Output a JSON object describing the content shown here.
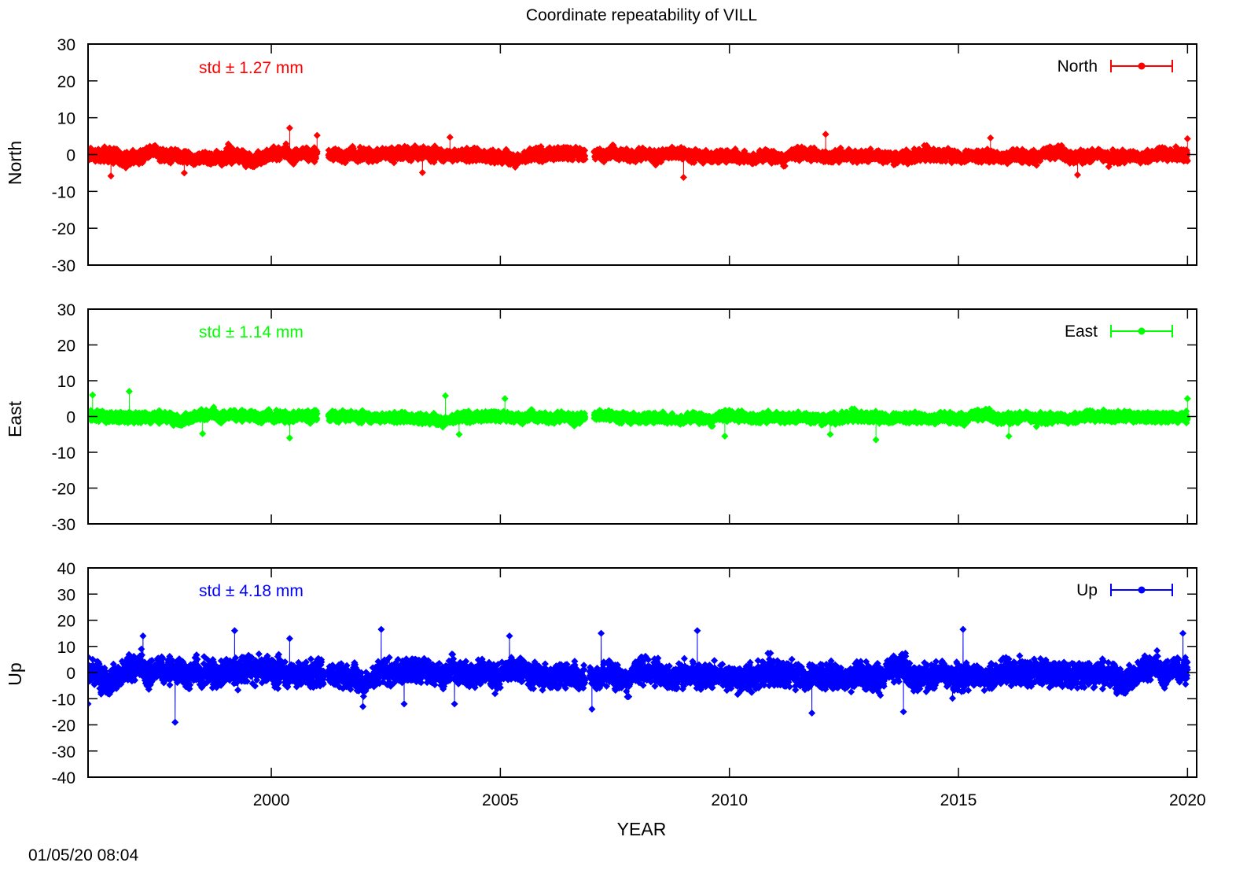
{
  "title": "Coordinate repeatability of VILL",
  "timestamp": "01/05/20 08:04",
  "colors": {
    "north": "#ff0000",
    "east": "#00ff00",
    "up": "#0000ff",
    "axis": "#000000"
  },
  "chart_data": [
    {
      "type": "scatter",
      "component": "North",
      "ylabel": "North",
      "legend": "North",
      "legend_position": "top-right",
      "std_label": "std ± 1.27 mm",
      "ylim": [
        -30,
        30
      ],
      "yticks": [
        30,
        20,
        10,
        0,
        -10,
        -20,
        -30
      ],
      "xlim": [
        1996.0,
        2020.2
      ],
      "grid": false,
      "series": [
        {
          "name": "North",
          "segments": [
            {
              "x0": 1996.0,
              "x1": 2001.0,
              "x_step": 0.0042,
              "center": -0.3,
              "spread": 1.6,
              "outliers": [
                [
                  1996.5,
                  -5.8
                ],
                [
                  2000.4,
                  7.2
                ],
                [
                  2001.0,
                  5.2
                ],
                [
                  1998.1,
                  -5.0
                ]
              ]
            },
            {
              "x0": 2001.25,
              "x1": 2006.85,
              "x_step": 0.0042,
              "center": 0.0,
              "spread": 1.5,
              "outliers": [
                [
                  2003.9,
                  4.7
                ],
                [
                  2003.3,
                  -4.9
                ]
              ]
            },
            {
              "x0": 2007.05,
              "x1": 2020.0,
              "x_step": 0.0042,
              "center": 0.0,
              "spread": 1.4,
              "outliers": [
                [
                  2009.0,
                  -6.2
                ],
                [
                  2012.1,
                  5.5
                ],
                [
                  2015.7,
                  4.5
                ],
                [
                  2017.6,
                  -5.5
                ],
                [
                  2020.0,
                  4.3
                ]
              ]
            }
          ]
        }
      ]
    },
    {
      "type": "scatter",
      "component": "East",
      "ylabel": "East",
      "legend": "East",
      "legend_position": "top-right",
      "std_label": "std ± 1.14 mm",
      "ylim": [
        -30,
        30
      ],
      "yticks": [
        30,
        20,
        10,
        0,
        -10,
        -20,
        -30
      ],
      "xlim": [
        1996.0,
        2020.2
      ],
      "grid": false,
      "series": [
        {
          "name": "East",
          "segments": [
            {
              "x0": 1996.0,
              "x1": 2001.0,
              "x_step": 0.0042,
              "center": 0.0,
              "spread": 1.3,
              "outliers": [
                [
                  1996.9,
                  7.0
                ],
                [
                  1996.1,
                  6.0
                ],
                [
                  2000.4,
                  -6.0
                ],
                [
                  1998.5,
                  -4.8
                ]
              ]
            },
            {
              "x0": 2001.25,
              "x1": 2006.85,
              "x_step": 0.0042,
              "center": -0.2,
              "spread": 1.2,
              "outliers": [
                [
                  2003.8,
                  5.8
                ],
                [
                  2004.1,
                  -5.0
                ],
                [
                  2005.1,
                  5.0
                ]
              ]
            },
            {
              "x0": 2007.05,
              "x1": 2020.0,
              "x_step": 0.0042,
              "center": 0.0,
              "spread": 1.2,
              "outliers": [
                [
                  2009.9,
                  -5.5
                ],
                [
                  2012.2,
                  -5.0
                ],
                [
                  2013.2,
                  -6.5
                ],
                [
                  2016.1,
                  -5.5
                ],
                [
                  2020.0,
                  5.0
                ]
              ]
            }
          ]
        }
      ]
    },
    {
      "type": "scatter",
      "component": "Up",
      "ylabel": "Up",
      "legend": "Up",
      "legend_position": "top-right",
      "std_label": "std ± 4.18 mm",
      "ylim": [
        -40,
        40
      ],
      "yticks": [
        40,
        30,
        20,
        10,
        0,
        -10,
        -20,
        -30,
        -40
      ],
      "xlim": [
        1996.0,
        2020.2
      ],
      "grid": false,
      "series": [
        {
          "name": "Up",
          "segments": [
            {
              "x0": 1996.0,
              "x1": 2001.15,
              "x_step": 0.0042,
              "center": 0.0,
              "spread": 4.5,
              "outliers": [
                [
                  1997.9,
                  -19.0
                ],
                [
                  1996.0,
                  -12.0
                ],
                [
                  1999.2,
                  16.0
                ],
                [
                  2000.4,
                  13.0
                ],
                [
                  1997.2,
                  14.0
                ]
              ]
            },
            {
              "x0": 2001.25,
              "x1": 2006.85,
              "x_step": 0.0042,
              "center": 0.0,
              "spread": 4.0,
              "outliers": [
                [
                  2002.4,
                  16.5
                ],
                [
                  2002.0,
                  -13.0
                ],
                [
                  2002.9,
                  -12.0
                ],
                [
                  2004.0,
                  -12.0
                ],
                [
                  2005.2,
                  14.0
                ]
              ]
            },
            {
              "x0": 2006.95,
              "x1": 2020.0,
              "x_step": 0.0042,
              "center": 0.0,
              "spread": 4.2,
              "outliers": [
                [
                  2007.0,
                  -14.0
                ],
                [
                  2007.2,
                  15.0
                ],
                [
                  2009.3,
                  16.0
                ],
                [
                  2011.8,
                  -15.5
                ],
                [
                  2013.8,
                  -15.0
                ],
                [
                  2015.1,
                  16.5
                ],
                [
                  2019.9,
                  15.0
                ]
              ]
            }
          ]
        }
      ]
    }
  ],
  "x_axis": {
    "label": "YEAR",
    "ticks": [
      2000,
      2005,
      2010,
      2015,
      2020
    ],
    "tick_labels": [
      "2000",
      "2005",
      "2010",
      "2015",
      "2020"
    ]
  }
}
